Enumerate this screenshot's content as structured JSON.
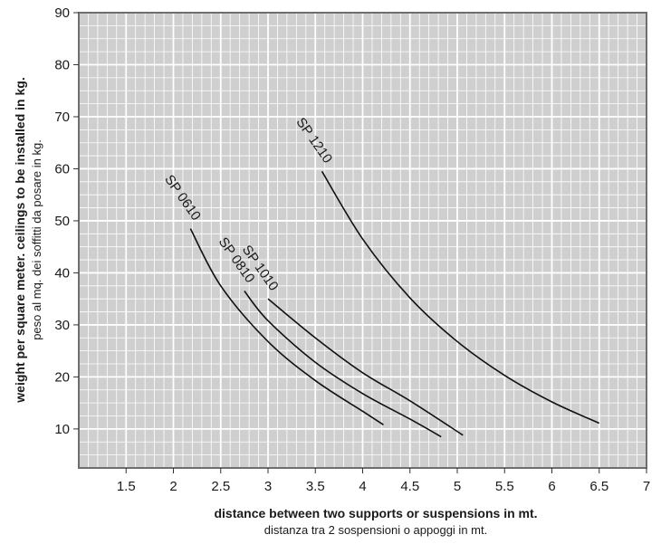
{
  "chart_data": {
    "type": "line",
    "title": "",
    "xlabel": "distance between two supports or suspensions in mt.",
    "xlabel_sub": "distanza tra 2 sospensioni o appoggi in mt.",
    "ylabel": "weight per square meter. ceilings to be installed in kg.",
    "ylabel_sub": "peso al mq. dei  soffitti da posare in kg.",
    "xlim": [
      1.0,
      7.0
    ],
    "ylim": [
      2.5,
      90
    ],
    "x_ticks": [
      "1.5",
      "2",
      "2.5",
      "3",
      "3.5",
      "4",
      "4.5",
      "5",
      "5.5",
      "6",
      "6.5",
      "7"
    ],
    "y_ticks": [
      "10",
      "20",
      "30",
      "40",
      "50",
      "60",
      "70",
      "80",
      "90"
    ],
    "grid": true,
    "colors": {
      "plot_bg": "#cfcfcf",
      "grid": "#ffffff",
      "frame": "#6e6e6e",
      "curve": "#111111"
    },
    "series": [
      {
        "name": "SP 0610",
        "points": [
          [
            2.18,
            48.5
          ],
          [
            2.5,
            37.5
          ],
          [
            3.0,
            26.8
          ],
          [
            3.5,
            19.3
          ],
          [
            4.0,
            13.4
          ],
          [
            4.22,
            10.8
          ]
        ]
      },
      {
        "name": "SP 0810",
        "points": [
          [
            2.75,
            36.5
          ],
          [
            3.0,
            30.8
          ],
          [
            3.5,
            22.8
          ],
          [
            4.0,
            16.8
          ],
          [
            4.5,
            11.9
          ],
          [
            4.83,
            8.5
          ]
        ]
      },
      {
        "name": "SP 1010",
        "points": [
          [
            3.0,
            35.0
          ],
          [
            3.5,
            27.5
          ],
          [
            4.0,
            20.8
          ],
          [
            4.5,
            15.4
          ],
          [
            5.06,
            8.8
          ]
        ]
      },
      {
        "name": "SP 1210",
        "points": [
          [
            3.57,
            59.5
          ],
          [
            4.0,
            46.5
          ],
          [
            4.5,
            35.2
          ],
          [
            5.0,
            26.8
          ],
          [
            5.5,
            20.3
          ],
          [
            6.0,
            15.2
          ],
          [
            6.5,
            11.1
          ]
        ]
      }
    ]
  }
}
